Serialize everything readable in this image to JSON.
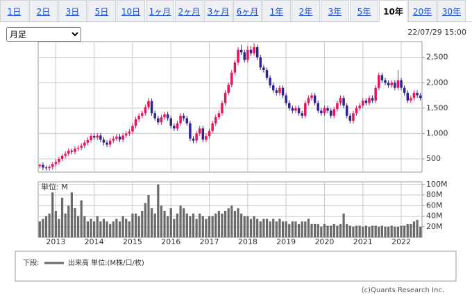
{
  "tabs": [
    "1日",
    "2日",
    "3日",
    "5日",
    "10日",
    "1ヶ月",
    "2ヶ月",
    "3ヶ月",
    "6ヶ月",
    "1年",
    "2年",
    "3年",
    "5年",
    "10年",
    "20年",
    "30年"
  ],
  "selected_tab_index": 13,
  "period_select": "月足",
  "timestamp": "22/07/29 15:00",
  "chart_data": [
    {
      "type": "candlestick",
      "up_color": "#e8145a",
      "down_color": "#2e2590",
      "grid": true,
      "ylim": [
        240,
        2810
      ],
      "yticks": [
        500,
        {
          "value": 1000,
          "label": "1,000"
        },
        {
          "value": 1500,
          "label": "1,500"
        },
        {
          "value": 2000,
          "label": "2,000"
        },
        {
          "value": 2500,
          "label": "2,500"
        }
      ],
      "open": [
        360,
        380,
        330,
        320,
        340,
        400,
        440,
        500,
        560,
        600,
        660,
        640,
        700,
        720,
        760,
        820,
        870,
        950,
        920,
        960,
        880,
        820,
        780,
        860,
        900,
        940,
        880,
        960,
        1000,
        1040,
        1150,
        1280,
        1350,
        1400,
        1520,
        1640,
        1400,
        1300,
        1220,
        1320,
        1380,
        1300,
        1150,
        1100,
        1200,
        1350,
        1300,
        1200,
        900,
        860,
        1000,
        1100,
        880,
        950,
        1050,
        1200,
        1320,
        1400,
        1600,
        1800,
        1960,
        2200,
        2400,
        2650,
        2600,
        2450,
        2650,
        2580,
        2700,
        2500,
        2300,
        2250,
        2100,
        1950,
        1850,
        1800,
        1900,
        1750,
        1600,
        1500,
        1450,
        1500,
        1400,
        1350,
        1600,
        1700,
        1750,
        1600,
        1450,
        1400,
        1500,
        1450,
        1350,
        1480,
        1600,
        1700,
        1550,
        1350,
        1250,
        1400,
        1500,
        1550,
        1650,
        1600,
        1700,
        1650,
        1900,
        2150,
        2050,
        2000,
        1950,
        2000,
        1900,
        2050,
        1900,
        1800,
        1650,
        1700,
        1800,
        1750
      ],
      "high": [
        410,
        430,
        370,
        380,
        440,
        490,
        540,
        600,
        650,
        710,
        700,
        750,
        770,
        810,
        870,
        920,
        1000,
        1000,
        1010,
        1010,
        930,
        870,
        910,
        950,
        990,
        990,
        1010,
        1050,
        1090,
        1200,
        1330,
        1400,
        1450,
        1570,
        1700,
        1690,
        1450,
        1350,
        1370,
        1430,
        1430,
        1350,
        1200,
        1250,
        1400,
        1400,
        1350,
        1250,
        950,
        1050,
        1150,
        1150,
        1000,
        1100,
        1250,
        1370,
        1450,
        1650,
        1850,
        2010,
        2250,
        2450,
        2700,
        2750,
        2650,
        2720,
        2720,
        2780,
        2750,
        2550,
        2350,
        2300,
        2150,
        2000,
        1900,
        1950,
        1950,
        1800,
        1650,
        1550,
        1550,
        1550,
        1450,
        1650,
        1750,
        1800,
        1800,
        1650,
        1500,
        1550,
        1550,
        1500,
        1530,
        1650,
        1750,
        1750,
        1600,
        1400,
        1450,
        1550,
        1600,
        1700,
        1700,
        1750,
        1750,
        1950,
        2200,
        2200,
        2100,
        2050,
        2050,
        2050,
        2250,
        2100,
        1950,
        1850,
        1750,
        1850,
        1850,
        1800
      ],
      "low": [
        310,
        280,
        270,
        270,
        290,
        350,
        390,
        450,
        510,
        550,
        590,
        590,
        650,
        670,
        710,
        770,
        820,
        870,
        870,
        830,
        770,
        730,
        730,
        810,
        850,
        830,
        830,
        910,
        950,
        990,
        1100,
        1230,
        1300,
        1350,
        1470,
        1350,
        1250,
        1170,
        1170,
        1270,
        1250,
        1100,
        1050,
        1050,
        1150,
        1250,
        1150,
        850,
        810,
        810,
        950,
        830,
        830,
        900,
        1000,
        1150,
        1270,
        1350,
        1550,
        1750,
        1910,
        2150,
        2350,
        2550,
        2400,
        2400,
        2530,
        2530,
        2450,
        2250,
        2200,
        2050,
        1900,
        1800,
        1750,
        1750,
        1700,
        1550,
        1450,
        1400,
        1400,
        1350,
        1300,
        1300,
        1550,
        1650,
        1550,
        1400,
        1350,
        1350,
        1400,
        1300,
        1300,
        1430,
        1550,
        1500,
        1300,
        1200,
        1200,
        1350,
        1450,
        1500,
        1550,
        1550,
        1600,
        1600,
        1850,
        2000,
        1950,
        1900,
        1900,
        1850,
        1850,
        1850,
        1750,
        1600,
        1600,
        1650,
        1700,
        1650
      ],
      "close": [
        380,
        330,
        320,
        340,
        400,
        440,
        500,
        560,
        600,
        660,
        640,
        700,
        720,
        760,
        820,
        870,
        950,
        920,
        960,
        880,
        820,
        780,
        860,
        900,
        940,
        880,
        960,
        1000,
        1040,
        1150,
        1280,
        1350,
        1400,
        1520,
        1640,
        1400,
        1300,
        1220,
        1320,
        1380,
        1300,
        1150,
        1100,
        1200,
        1350,
        1300,
        1200,
        900,
        860,
        1000,
        1100,
        880,
        950,
        1050,
        1200,
        1320,
        1400,
        1600,
        1800,
        1960,
        2200,
        2400,
        2650,
        2600,
        2450,
        2650,
        2580,
        2700,
        2500,
        2300,
        2250,
        2100,
        1950,
        1850,
        1800,
        1900,
        1750,
        1600,
        1500,
        1450,
        1500,
        1400,
        1350,
        1600,
        1700,
        1750,
        1600,
        1450,
        1400,
        1500,
        1450,
        1350,
        1480,
        1600,
        1700,
        1550,
        1350,
        1250,
        1400,
        1500,
        1550,
        1650,
        1600,
        1700,
        1650,
        1900,
        2150,
        2050,
        2000,
        1950,
        2000,
        1900,
        2050,
        1900,
        1800,
        1650,
        1700,
        1800,
        1750,
        1700
      ]
    },
    {
      "type": "bar",
      "title": "単位: M",
      "color": "#6a6a6a",
      "grid": true,
      "ylim": [
        0,
        105
      ],
      "yticks": [
        {
          "value": 20,
          "label": "20M"
        },
        {
          "value": 40,
          "label": "40M"
        },
        {
          "value": 60,
          "label": "60M"
        },
        {
          "value": 80,
          "label": "80M"
        },
        {
          "value": 100,
          "label": "100M"
        }
      ],
      "categories": [
        null,
        null,
        null,
        null,
        null,
        "2013",
        null,
        null,
        null,
        null,
        null,
        null,
        null,
        null,
        null,
        null,
        null,
        "2014",
        null,
        null,
        null,
        null,
        null,
        null,
        null,
        null,
        null,
        null,
        null,
        "2015",
        null,
        null,
        null,
        null,
        null,
        null,
        null,
        null,
        null,
        null,
        null,
        "2016",
        null,
        null,
        null,
        null,
        null,
        null,
        null,
        null,
        null,
        null,
        null,
        "2017",
        null,
        null,
        null,
        null,
        null,
        null,
        null,
        null,
        null,
        null,
        null,
        "2018",
        null,
        null,
        null,
        null,
        null,
        null,
        null,
        null,
        null,
        null,
        null,
        "2019",
        null,
        null,
        null,
        null,
        null,
        null,
        null,
        null,
        null,
        null,
        null,
        "2020",
        null,
        null,
        null,
        null,
        null,
        null,
        null,
        null,
        null,
        null,
        null,
        "2021",
        null,
        null,
        null,
        null,
        null,
        null,
        null,
        null,
        null,
        null,
        null,
        "2022",
        null,
        null,
        null,
        null,
        null,
        null
      ],
      "values": [
        30,
        35,
        40,
        45,
        85,
        50,
        35,
        75,
        45,
        60,
        85,
        55,
        40,
        70,
        40,
        30,
        35,
        30,
        40,
        30,
        35,
        30,
        25,
        30,
        35,
        30,
        40,
        35,
        30,
        45,
        45,
        40,
        50,
        65,
        80,
        55,
        45,
        100,
        60,
        50,
        40,
        55,
        35,
        45,
        60,
        55,
        45,
        40,
        45,
        35,
        45,
        40,
        35,
        40,
        40,
        45,
        50,
        45,
        50,
        55,
        60,
        50,
        55,
        45,
        40,
        40,
        35,
        40,
        35,
        30,
        35,
        35,
        30,
        35,
        30,
        35,
        30,
        30,
        25,
        30,
        30,
        25,
        30,
        30,
        35,
        25,
        25,
        25,
        20,
        25,
        22,
        22,
        25,
        22,
        25,
        45,
        25,
        22,
        20,
        22,
        22,
        20,
        22,
        20,
        22,
        22,
        20,
        22,
        20,
        20,
        22,
        20,
        20,
        22,
        22,
        25,
        25,
        30,
        33,
        20
      ]
    }
  ],
  "legend": {
    "prefix": "下段:",
    "label": "出来高 単位:(M株/口/枚)"
  },
  "copyright": "(c)Quants Research Inc."
}
